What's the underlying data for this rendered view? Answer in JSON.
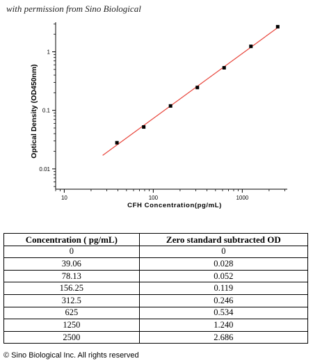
{
  "permission_text": "with permission from Sino Biological",
  "chart_data": {
    "type": "scatter",
    "x_scale": "log",
    "y_scale": "log",
    "xlabel": "CFH  Concentration(pg/mL)",
    "ylabel": "Optical Density (OD450nm)",
    "xlim": [
      8,
      3200
    ],
    "ylim": [
      0.0045,
      3.2
    ],
    "x_ticks": [
      10,
      100,
      1000
    ],
    "x_tick_labels": [
      "10",
      "100",
      "1000"
    ],
    "y_ticks": [
      0.01,
      0.1,
      1
    ],
    "y_tick_labels": [
      "0.01",
      "0.1",
      "1"
    ],
    "points": [
      {
        "x": 39.06,
        "y": 0.028
      },
      {
        "x": 78.13,
        "y": 0.052
      },
      {
        "x": 156.25,
        "y": 0.119
      },
      {
        "x": 312.5,
        "y": 0.246
      },
      {
        "x": 625,
        "y": 0.534
      },
      {
        "x": 1250,
        "y": 1.24
      },
      {
        "x": 2500,
        "y": 2.686
      }
    ],
    "fit_line": {
      "x_start": 27,
      "x_end": 2500,
      "color": "#e8443a"
    },
    "point_color": "#000000"
  },
  "table": {
    "headers": [
      "Concentration ( pg/mL)",
      "Zero standard subtracted OD"
    ],
    "rows": [
      [
        "0",
        "0"
      ],
      [
        "39.06",
        "0.028"
      ],
      [
        "78.13",
        "0.052"
      ],
      [
        "156.25",
        "0.119"
      ],
      [
        "312.5",
        "0.246"
      ],
      [
        "625",
        "0.534"
      ],
      [
        "1250",
        "1.240"
      ],
      [
        "2500",
        "2.686"
      ]
    ]
  },
  "copyright": "© Sino Biological Inc. All rights reserved"
}
